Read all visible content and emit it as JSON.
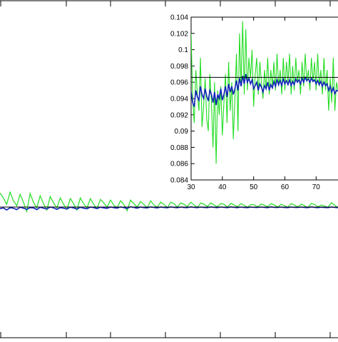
{
  "chart_data": [
    {
      "type": "line",
      "role": "main",
      "title": "",
      "xlabel": "",
      "ylabel": "",
      "reference_y": 0.0966,
      "series": [
        {
          "color": "#22dd22",
          "values": [
            0.1065,
            0.103,
            0.0985,
            0.107,
            0.101,
            0.0975,
            0.1055,
            0.1,
            0.0935,
            0.106,
            0.1,
            0.096,
            0.1045,
            0.099,
            0.0945,
            0.104,
            0.0995,
            0.096,
            0.103,
            0.0985,
            0.095,
            0.1025,
            0.099,
            0.0945,
            0.103,
            0.099,
            0.096,
            0.1025,
            0.0985,
            0.0955,
            0.102,
            0.0995,
            0.0965,
            0.1015,
            0.098,
            0.096,
            0.101,
            0.0985,
            0.094,
            0.1015,
            0.099,
            0.0965,
            0.1005,
            0.0985,
            0.096,
            0.101,
            0.098,
            0.0965,
            0.1,
            0.0985,
            0.096,
            0.1,
            0.099,
            0.0965,
            0.0995,
            0.0985,
            0.097,
            0.1,
            0.098,
            0.0965,
            0.0995,
            0.0985,
            0.097,
            0.0995,
            0.098,
            0.0968,
            0.099,
            0.0985,
            0.0965,
            0.0992,
            0.098,
            0.0968,
            0.099,
            0.0978,
            0.0964,
            0.0985,
            0.0982,
            0.0966,
            0.0988,
            0.0978,
            0.0968,
            0.099,
            0.098,
            0.0966,
            0.0985,
            0.0976,
            0.0964,
            0.099,
            0.098,
            0.0966,
            0.0986,
            0.0975,
            0.0962,
            0.0992,
            0.0984,
            0.0968,
            0.098,
            0.0972,
            0.0964,
            0.0996,
            0.098,
            0.096
          ]
        },
        {
          "color": "#1122bb",
          "values": [
            0.0955,
            0.096,
            0.0945,
            0.0962,
            0.0958,
            0.0948,
            0.0965,
            0.0958,
            0.095,
            0.0962,
            0.096,
            0.0948,
            0.0964,
            0.0958,
            0.0952,
            0.0966,
            0.096,
            0.095,
            0.0962,
            0.0958,
            0.0952,
            0.0965,
            0.096,
            0.0952,
            0.0964,
            0.0958,
            0.0954,
            0.0966,
            0.0962,
            0.0955,
            0.0965,
            0.096,
            0.0957,
            0.0966,
            0.0962,
            0.0958,
            0.0967,
            0.0962,
            0.0957,
            0.0968,
            0.0963,
            0.0958,
            0.0966,
            0.0962,
            0.096,
            0.0967,
            0.0963,
            0.096,
            0.0966,
            0.0963,
            0.0961,
            0.0967,
            0.0964,
            0.0961,
            0.0966,
            0.0963,
            0.0962,
            0.0967,
            0.0964,
            0.0962,
            0.0966,
            0.0963,
            0.0962,
            0.0967,
            0.0964,
            0.0962,
            0.0966,
            0.0964,
            0.0962,
            0.0967,
            0.0964,
            0.0962,
            0.0966,
            0.0963,
            0.0962,
            0.0966,
            0.0964,
            0.0963,
            0.0966,
            0.0964,
            0.0962,
            0.0967,
            0.0964,
            0.0963,
            0.0966,
            0.0963,
            0.0962,
            0.0966,
            0.0964,
            0.0963,
            0.0966,
            0.0963,
            0.0962,
            0.0967,
            0.0964,
            0.0962,
            0.0965,
            0.0963,
            0.0962,
            0.0966,
            0.0964,
            0.0962
          ]
        }
      ]
    },
    {
      "type": "line",
      "role": "inset",
      "title": "",
      "xlabel": "",
      "ylabel": "",
      "xlim": [
        30,
        77
      ],
      "ylim": [
        0.084,
        0.104
      ],
      "x_ticks": [
        "30",
        "40",
        "50",
        "60",
        "70"
      ],
      "y_ticks": [
        "0.084",
        "0.086",
        "0.088",
        "0.09",
        "0.092",
        "0.094",
        "0.096",
        "0.098",
        "0.1",
        "0.102",
        "0.104"
      ],
      "reference_y": 0.0966,
      "series": [
        {
          "color": "#22dd22",
          "x": [
            30,
            30.5,
            31,
            31.5,
            32,
            32.5,
            33,
            33.5,
            34,
            34.5,
            35,
            35.5,
            36,
            36.5,
            37,
            37.5,
            38,
            38.5,
            39,
            39.5,
            40,
            40.5,
            41,
            41.5,
            42,
            42.5,
            43,
            43.5,
            44,
            44.5,
            45,
            45.5,
            46,
            46.5,
            47,
            47.5,
            48,
            48.5,
            49,
            49.5,
            50,
            50.5,
            51,
            51.5,
            52,
            52.5,
            53,
            53.5,
            54,
            54.5,
            55,
            55.5,
            56,
            56.5,
            57,
            57.5,
            58,
            58.5,
            59,
            59.5,
            60,
            60.5,
            61,
            61.5,
            62,
            62.5,
            63,
            63.5,
            64,
            64.5,
            65,
            65.5,
            66,
            66.5,
            67,
            67.5,
            68,
            68.5,
            69,
            69.5,
            70,
            70.5,
            71,
            71.5,
            72,
            72.5,
            73,
            73.5,
            74,
            74.5,
            75,
            75.5,
            76,
            76.5,
            77
          ],
          "values": [
            0.102,
            0.094,
            0.091,
            0.0975,
            0.0945,
            0.0925,
            0.099,
            0.0905,
            0.093,
            0.0965,
            0.0915,
            0.09,
            0.097,
            0.0935,
            0.088,
            0.096,
            0.086,
            0.095,
            0.092,
            0.0955,
            0.0895,
            0.0935,
            0.097,
            0.091,
            0.0985,
            0.0925,
            0.096,
            0.089,
            0.094,
            0.0995,
            0.09,
            0.102,
            0.0955,
            0.1035,
            0.0945,
            0.1025,
            0.095,
            0.099,
            0.0965,
            0.1,
            0.093,
            0.097,
            0.099,
            0.0945,
            0.0985,
            0.096,
            0.094,
            0.0975,
            0.095,
            0.099,
            0.0945,
            0.0975,
            0.0955,
            0.0985,
            0.095,
            0.0995,
            0.0955,
            0.0975,
            0.0945,
            0.099,
            0.095,
            0.0985,
            0.096,
            0.0995,
            0.0945,
            0.098,
            0.095,
            0.099,
            0.096,
            0.0975,
            0.0945,
            0.0985,
            0.0955,
            0.0995,
            0.096,
            0.0975,
            0.095,
            0.099,
            0.096,
            0.0985,
            0.095,
            0.0995,
            0.0955,
            0.0975,
            0.0945,
            0.099,
            0.095,
            0.0975,
            0.0925,
            0.0965,
            0.0935,
            0.099,
            0.0925,
            0.096,
            0.095
          ]
        },
        {
          "color": "#1122bb",
          "x": [
            30,
            30.5,
            31,
            31.5,
            32,
            32.5,
            33,
            33.5,
            34,
            34.5,
            35,
            35.5,
            36,
            36.5,
            37,
            37.5,
            38,
            38.5,
            39,
            39.5,
            40,
            40.5,
            41,
            41.5,
            42,
            42.5,
            43,
            43.5,
            44,
            44.5,
            45,
            45.5,
            46,
            46.5,
            47,
            47.5,
            48,
            48.5,
            49,
            49.5,
            50,
            50.5,
            51,
            51.5,
            52,
            52.5,
            53,
            53.5,
            54,
            54.5,
            55,
            55.5,
            56,
            56.5,
            57,
            57.5,
            58,
            58.5,
            59,
            59.5,
            60,
            60.5,
            61,
            61.5,
            62,
            62.5,
            63,
            63.5,
            64,
            64.5,
            65,
            65.5,
            66,
            66.5,
            67,
            67.5,
            68,
            68.5,
            69,
            69.5,
            70,
            70.5,
            71,
            71.5,
            72,
            72.5,
            73,
            73.5,
            74,
            74.5,
            75,
            75.5,
            76,
            76.5,
            77
          ],
          "values": [
            0.0948,
            0.0935,
            0.093,
            0.095,
            0.0942,
            0.0938,
            0.0955,
            0.0945,
            0.094,
            0.0952,
            0.0943,
            0.0937,
            0.095,
            0.0945,
            0.0935,
            0.0948,
            0.0932,
            0.0945,
            0.094,
            0.0952,
            0.0938,
            0.0945,
            0.0955,
            0.0942,
            0.0958,
            0.0948,
            0.0955,
            0.0945,
            0.0952,
            0.0962,
            0.095,
            0.0965,
            0.0955,
            0.0968,
            0.0958,
            0.097,
            0.096,
            0.0965,
            0.0958,
            0.0963,
            0.0952,
            0.0956,
            0.096,
            0.095,
            0.0958,
            0.0954,
            0.0948,
            0.0956,
            0.0952,
            0.096,
            0.095,
            0.0957,
            0.0953,
            0.0961,
            0.0955,
            0.0963,
            0.0957,
            0.0962,
            0.0956,
            0.0964,
            0.0958,
            0.0962,
            0.0957,
            0.0963,
            0.0956,
            0.0961,
            0.0957,
            0.0964,
            0.096,
            0.0963,
            0.0958,
            0.0965,
            0.096,
            0.0966,
            0.0962,
            0.0964,
            0.096,
            0.0965,
            0.0961,
            0.0963,
            0.0958,
            0.0962,
            0.0957,
            0.0961,
            0.0955,
            0.096,
            0.0956,
            0.0958,
            0.095,
            0.0955,
            0.0948,
            0.0953,
            0.0946,
            0.095,
            0.0949
          ]
        }
      ]
    }
  ]
}
